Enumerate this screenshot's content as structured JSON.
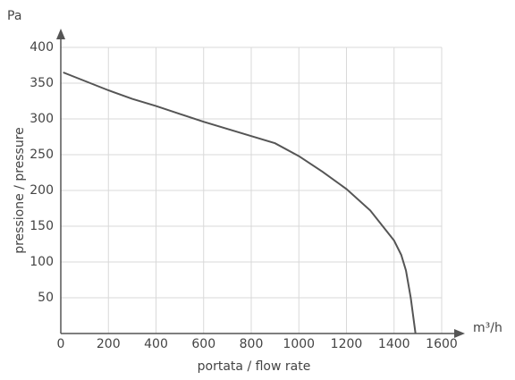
{
  "chart_data": {
    "type": "line",
    "x_label": "portata / flow rate",
    "y_label": "pressione / pressure",
    "x_unit": "m³/h",
    "y_unit": "Pa",
    "series": [
      {
        "color": "#555555",
        "x": [
          10,
          200,
          300,
          400,
          500,
          600,
          700,
          800,
          900,
          1000,
          1100,
          1200,
          1300,
          1400,
          1430,
          1450,
          1470,
          1490
        ],
        "values": [
          365,
          340,
          328,
          318,
          307,
          296,
          286,
          276,
          266,
          248,
          226,
          202,
          172,
          130,
          110,
          88,
          50,
          0
        ]
      }
    ],
    "xlim": [
      0,
      1600
    ],
    "xticks": [
      0,
      200,
      400,
      600,
      800,
      1000,
      1200,
      1400,
      1600
    ],
    "ylim": [
      0,
      400
    ],
    "yticks": [
      50,
      100,
      150,
      200,
      250,
      300,
      350,
      400
    ],
    "grid": true
  }
}
